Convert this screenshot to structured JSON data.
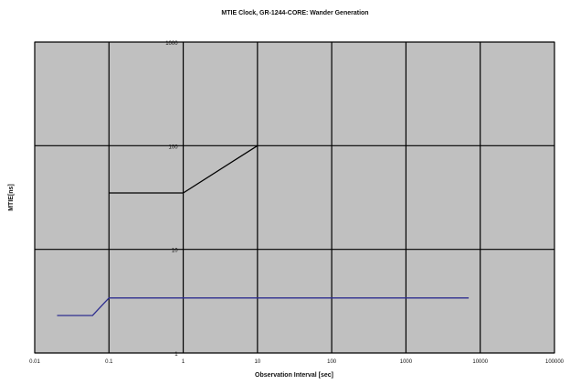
{
  "chart_data": {
    "type": "line",
    "title": "MTIE Clock, GR-1244-CORE: Wander Generation",
    "xlabel": "Observation Interval [sec]",
    "ylabel": "MTIE[ns]",
    "x_scale": "log",
    "y_scale": "log",
    "xlim": [
      0.01,
      100000
    ],
    "ylim": [
      1,
      1000
    ],
    "x_ticks": [
      "0.01",
      "0.1",
      "1",
      "10",
      "100",
      "1000",
      "10000",
      "100000"
    ],
    "y_ticks": [
      "1000",
      "100",
      "10",
      "1"
    ],
    "grid": true,
    "colors": {
      "plot_bg": "#c0c0c0",
      "grid": "#000000",
      "mask": "#000000",
      "measured": "#2e2e8f"
    },
    "series": [
      {
        "values": [
          [
            0.1,
            35
          ],
          [
            1,
            35
          ],
          [
            10,
            100
          ]
        ]
      },
      {
        "values": [
          [
            0.02,
            2.3
          ],
          [
            0.06,
            2.3
          ],
          [
            0.1,
            3.4
          ],
          [
            7000,
            3.4
          ]
        ]
      }
    ]
  }
}
